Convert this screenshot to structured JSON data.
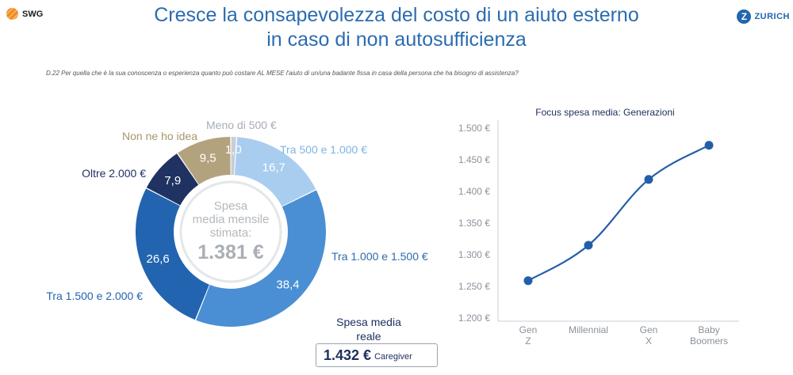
{
  "header": {
    "title_line1": "Cresce la consapevolezza del costo di un aiuto esterno",
    "title_line2": "in caso di non autosufficienza",
    "left_logo_text": "SWG",
    "right_logo_text": "ZURICH",
    "right_logo_mark": "Z"
  },
  "question": "D.22 Per quella che è la sua conoscenza o esperienza quanto può costare AL MESE l'aiuto di un/una badante fissa in casa della persona che ha bisogno di assistenza?",
  "donut_center": {
    "line1": "Spesa",
    "line2": "media mensile",
    "line3": "stimata:",
    "value": "1.381 €"
  },
  "caregiver": {
    "title_line1": "Spesa media",
    "title_line2": "reale",
    "value": "1.432 €",
    "label": "Caregiver"
  },
  "chart_data": [
    {
      "type": "pie",
      "style": "donut",
      "slices": [
        {
          "label": "Meno di 500 €",
          "value": 1.0,
          "value_label": "1,0",
          "color": "#c8ced4",
          "label_color": "#a6adb5"
        },
        {
          "label": "Tra 500 e 1.000 €",
          "value": 16.7,
          "value_label": "16,7",
          "color": "#a9cdef",
          "label_color": "#7fb3e6"
        },
        {
          "label": "Tra 1.000 e 1.500 €",
          "value": 38.4,
          "value_label": "38,4",
          "color": "#4a8fd4",
          "label_color": "#2b6cb0"
        },
        {
          "label": "Tra 1.500 e 2.000 €",
          "value": 26.6,
          "value_label": "26,6",
          "color": "#2264b0",
          "label_color": "#2264b0"
        },
        {
          "label": "Oltre 2.000 €",
          "value": 7.9,
          "value_label": "7,9",
          "color": "#1f3262",
          "label_color": "#1f3262"
        },
        {
          "label": "Non ne ho idea",
          "value": 9.5,
          "value_label": "9,5",
          "color": "#b3a27e",
          "label_color": "#a8956c"
        }
      ]
    },
    {
      "type": "line",
      "title_bold": "Focus spesa media",
      "title_rest": ": Generazioni",
      "categories": [
        "Gen Z",
        "Millennial",
        "Gen X",
        "Baby Boomers"
      ],
      "values": [
        1259,
        1315,
        1419,
        1473
      ],
      "ylim": [
        1200,
        1500
      ],
      "yticks": [
        1200,
        1250,
        1300,
        1350,
        1400,
        1450,
        1500
      ],
      "ytick_labels": [
        "1.200 €",
        "1.250 €",
        "1.300 €",
        "1.350 €",
        "1.400 €",
        "1.450 €",
        "1.500 €"
      ],
      "grid": false,
      "color": "#245ea8"
    }
  ]
}
